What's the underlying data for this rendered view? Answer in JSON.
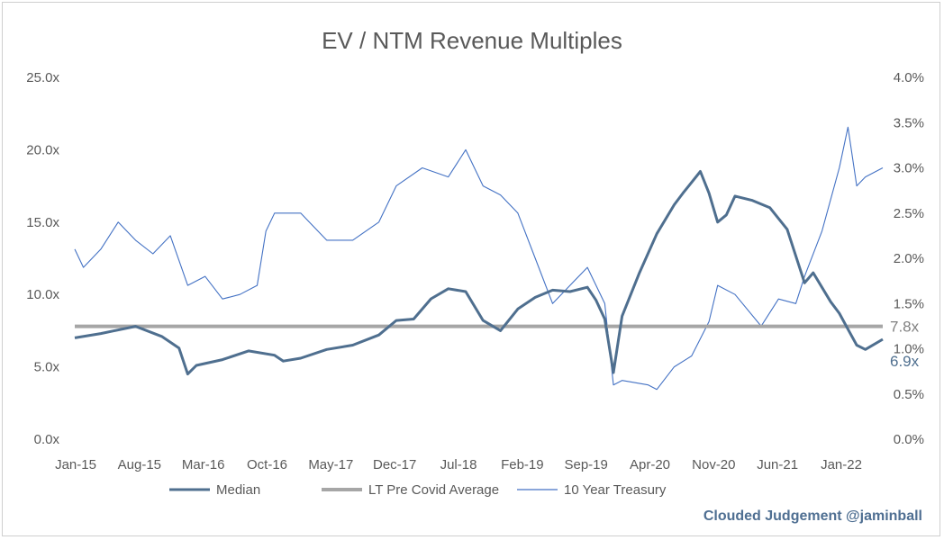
{
  "chart_data": {
    "type": "line",
    "title": "EV / NTM Revenue Multiples",
    "x_tick_labels": [
      "Jan-15",
      "Aug-15",
      "Mar-16",
      "Oct-16",
      "May-17",
      "Dec-17",
      "Jul-18",
      "Feb-19",
      "Sep-19",
      "Apr-20",
      "Nov-20",
      "Jun-21",
      "Jan-22"
    ],
    "y_left": {
      "ticks": [
        "0.0x",
        "5.0x",
        "10.0x",
        "15.0x",
        "20.0x",
        "25.0x"
      ],
      "ylim": [
        0,
        25
      ]
    },
    "y_right": {
      "ticks": [
        "0.0%",
        "0.5%",
        "1.0%",
        "1.5%",
        "2.0%",
        "2.5%",
        "3.0%",
        "3.5%",
        "4.0%"
      ],
      "ylim": [
        0,
        4
      ]
    },
    "x_range": [
      "2015-01",
      "2022-10"
    ],
    "grid": false,
    "legend_position": "bottom",
    "series": [
      {
        "name": "Median",
        "axis": "left",
        "color": "#4f6f8f",
        "x": [
          "2015-01",
          "2015-04",
          "2015-08",
          "2015-11",
          "2016-01",
          "2016-02",
          "2016-03",
          "2016-06",
          "2016-09",
          "2016-12",
          "2017-01",
          "2017-03",
          "2017-06",
          "2017-09",
          "2017-12",
          "2018-02",
          "2018-04",
          "2018-06",
          "2018-08",
          "2018-10",
          "2018-12",
          "2019-02",
          "2019-04",
          "2019-06",
          "2019-08",
          "2019-10",
          "2019-12",
          "2020-01",
          "2020-02",
          "2020-03",
          "2020-04",
          "2020-06",
          "2020-08",
          "2020-10",
          "2020-11",
          "2021-01",
          "2021-02",
          "2021-03",
          "2021-04",
          "2021-05",
          "2021-07",
          "2021-09",
          "2021-11",
          "2022-01",
          "2022-02",
          "2022-04",
          "2022-05",
          "2022-06",
          "2022-07",
          "2022-08",
          "2022-10"
        ],
        "values": [
          7.0,
          7.3,
          7.8,
          7.1,
          6.3,
          4.5,
          5.1,
          5.5,
          6.1,
          5.8,
          5.4,
          5.6,
          6.2,
          6.5,
          7.2,
          8.2,
          8.3,
          9.7,
          10.4,
          10.2,
          8.2,
          7.5,
          9.0,
          9.8,
          10.3,
          10.2,
          10.5,
          9.6,
          8.3,
          4.6,
          8.5,
          11.5,
          14.2,
          16.2,
          17.0,
          18.5,
          17.0,
          15.0,
          15.5,
          16.8,
          16.5,
          16.0,
          14.5,
          10.8,
          11.5,
          9.5,
          8.7,
          7.6,
          6.5,
          6.2,
          6.9
        ]
      },
      {
        "name": "LT Pre Covid Average",
        "axis": "left",
        "color": "#a6a6a6",
        "constant": 7.8
      },
      {
        "name": "10 Year Treasury",
        "axis": "right",
        "color": "#4472c4",
        "x": [
          "2015-01",
          "2015-02",
          "2015-04",
          "2015-06",
          "2015-08",
          "2015-10",
          "2015-12",
          "2016-02",
          "2016-04",
          "2016-06",
          "2016-08",
          "2016-10",
          "2016-11",
          "2016-12",
          "2017-03",
          "2017-06",
          "2017-09",
          "2017-12",
          "2018-02",
          "2018-05",
          "2018-08",
          "2018-10",
          "2018-12",
          "2019-02",
          "2019-04",
          "2019-06",
          "2019-08",
          "2019-10",
          "2019-12",
          "2020-02",
          "2020-03",
          "2020-04",
          "2020-07",
          "2020-08",
          "2020-10",
          "2020-12",
          "2021-02",
          "2021-03",
          "2021-05",
          "2021-08",
          "2021-10",
          "2021-12",
          "2022-01",
          "2022-03",
          "2022-05",
          "2022-06",
          "2022-07",
          "2022-08",
          "2022-10"
        ],
        "values": [
          2.1,
          1.9,
          2.1,
          2.4,
          2.2,
          2.05,
          2.25,
          1.7,
          1.8,
          1.55,
          1.6,
          1.7,
          2.3,
          2.5,
          2.5,
          2.2,
          2.2,
          2.4,
          2.8,
          3.0,
          2.9,
          3.2,
          2.8,
          2.7,
          2.5,
          2.0,
          1.5,
          1.7,
          1.9,
          1.5,
          0.6,
          0.65,
          0.6,
          0.55,
          0.8,
          0.92,
          1.3,
          1.7,
          1.6,
          1.25,
          1.55,
          1.5,
          1.8,
          2.3,
          3.0,
          3.45,
          2.8,
          2.9,
          3.0
        ]
      }
    ],
    "end_labels": [
      {
        "text": "7.8x",
        "series": "LT Pre Covid Average"
      },
      {
        "text": "6.9x",
        "series": "Median"
      }
    ]
  },
  "watermark": "Clouded Judgement @jaminball"
}
